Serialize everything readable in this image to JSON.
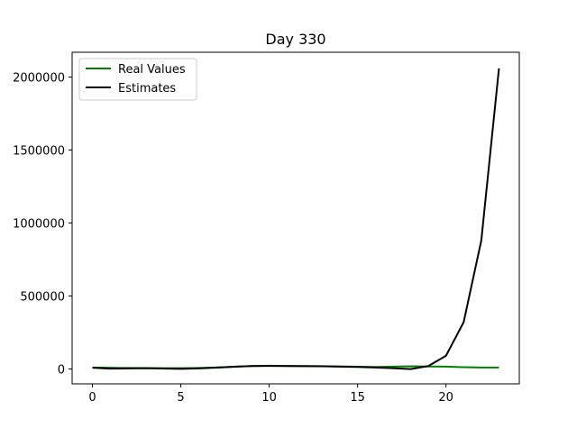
{
  "chart_data": {
    "type": "line",
    "title": "Day 330",
    "xlabel": "",
    "ylabel": "",
    "xlim": [
      -1.15,
      24.15
    ],
    "ylim": [
      -102000,
      2170000
    ],
    "xticks": [
      0,
      5,
      10,
      15,
      20
    ],
    "xtick_labels": [
      "0",
      "5",
      "10",
      "15",
      "20"
    ],
    "yticks": [
      0,
      500000,
      1000000,
      1500000,
      2000000
    ],
    "ytick_labels": [
      "0",
      "500000",
      "1000000",
      "1500000",
      "2000000"
    ],
    "grid": false,
    "legend": "top-left",
    "x": [
      0,
      1,
      2,
      3,
      4,
      5,
      6,
      7,
      8,
      9,
      10,
      11,
      12,
      13,
      14,
      15,
      16,
      17,
      18,
      19,
      20,
      21,
      22,
      23
    ],
    "series": [
      {
        "name": "Real Values",
        "color": "#008000",
        "values": [
          10000,
          8000,
          7000,
          6000,
          5000,
          5000,
          7000,
          10000,
          15000,
          20000,
          22000,
          21000,
          20000,
          19000,
          17000,
          15000,
          14000,
          16000,
          18000,
          17000,
          16000,
          12000,
          10000,
          10000
        ]
      },
      {
        "name": "Estimates",
        "color": "#000000",
        "values": [
          8000,
          2000,
          4000,
          5000,
          3000,
          1000,
          4000,
          9000,
          15000,
          20000,
          21000,
          20000,
          19000,
          18000,
          16000,
          14000,
          10000,
          5000,
          -1000,
          20000,
          90000,
          320000,
          880000,
          2060000
        ]
      }
    ]
  }
}
